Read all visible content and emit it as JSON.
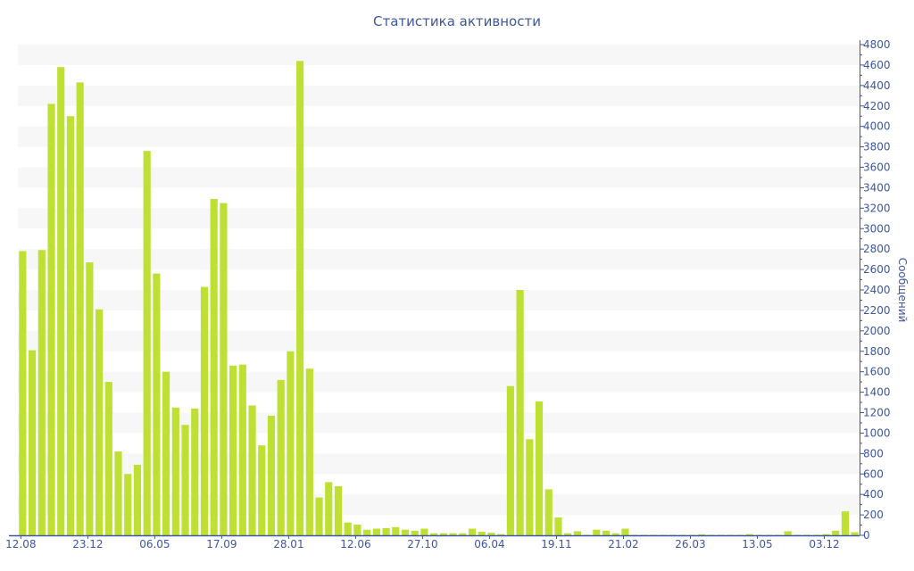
{
  "chart_data": {
    "type": "bar",
    "title": "Статистика активности",
    "ylabel": "Сообщений",
    "xlabel": "",
    "ylim": [
      0,
      4800
    ],
    "y_tick_step": 200,
    "y_axis_side": "right",
    "grid": "alternating horizontal bands",
    "colors": {
      "bar": "#bde033",
      "text": "#3d56a0",
      "band": "#f7f7f7",
      "axis": "#3d56a0"
    },
    "x_ticks": [
      {
        "index": 0,
        "label": "12.08"
      },
      {
        "index": 7,
        "label": "23.12"
      },
      {
        "index": 14,
        "label": "06.05"
      },
      {
        "index": 21,
        "label": "17.09"
      },
      {
        "index": 28,
        "label": "28.01"
      },
      {
        "index": 35,
        "label": "12.06"
      },
      {
        "index": 42,
        "label": "27.10"
      },
      {
        "index": 49,
        "label": "06.04"
      },
      {
        "index": 56,
        "label": "19.11"
      },
      {
        "index": 63,
        "label": "21.02"
      },
      {
        "index": 70,
        "label": "26.03"
      },
      {
        "index": 77,
        "label": "13.05"
      },
      {
        "index": 84,
        "label": "03.12"
      }
    ],
    "values": [
      2780,
      1810,
      2790,
      4220,
      4580,
      4100,
      4430,
      2670,
      2210,
      1500,
      820,
      600,
      690,
      3760,
      2560,
      1600,
      1250,
      1080,
      1240,
      2430,
      3290,
      3250,
      1660,
      1670,
      1270,
      880,
      1170,
      1520,
      1800,
      4640,
      1630,
      370,
      520,
      480,
      125,
      105,
      55,
      65,
      70,
      80,
      55,
      45,
      65,
      20,
      20,
      20,
      20,
      65,
      35,
      25,
      12,
      1460,
      2400,
      940,
      1310,
      450,
      175,
      20,
      40,
      5,
      55,
      45,
      20,
      65,
      5,
      5,
      5,
      5,
      5,
      5,
      5,
      10,
      5,
      5,
      5,
      5,
      12,
      5,
      5,
      5,
      40,
      5,
      5,
      5,
      12,
      45,
      235,
      30
    ]
  }
}
